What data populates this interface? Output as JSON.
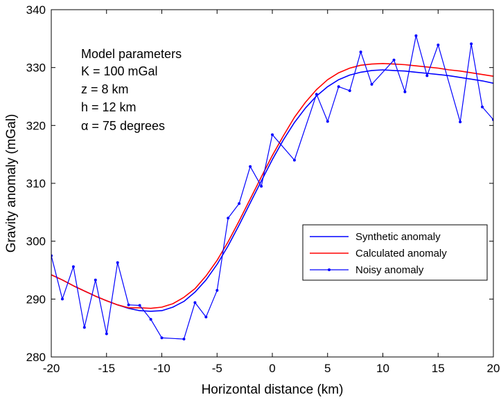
{
  "chart_data": {
    "type": "line",
    "title": "",
    "xlabel": "Horizontal distance (km)",
    "ylabel": "Gravity anomaly (mGal)",
    "xlim": [
      -20,
      20
    ],
    "ylim": [
      280,
      340
    ],
    "xticks": [
      -20,
      -15,
      -10,
      -5,
      0,
      5,
      10,
      15,
      20
    ],
    "yticks": [
      280,
      290,
      300,
      310,
      320,
      330,
      340
    ],
    "grid": false,
    "legend_position": "center-right",
    "annotations": {
      "heading": "Model parameters",
      "lines": [
        "K = 100 mGal",
        "z = 8 km",
        "h = 12 km",
        "α = 75 degrees"
      ]
    },
    "x": [
      -20,
      -19,
      -18,
      -17,
      -16,
      -15,
      -14,
      -13,
      -12,
      -11,
      -10,
      -9,
      -8,
      -7,
      -6,
      -5,
      -4,
      -3,
      -2,
      -1,
      0,
      1,
      2,
      3,
      4,
      5,
      6,
      7,
      8,
      9,
      10,
      11,
      12,
      13,
      14,
      15,
      16,
      17,
      18,
      19,
      20
    ],
    "series": [
      {
        "name": "Synthetic anomaly",
        "color": "#0000ff",
        "style": "line",
        "values": [
          294.2,
          293.3,
          292.3,
          291.4,
          290.5,
          289.7,
          289.0,
          288.4,
          288.0,
          287.9,
          288.0,
          288.6,
          289.6,
          291.2,
          293.3,
          296.0,
          299.2,
          302.8,
          306.6,
          310.4,
          314.1,
          317.5,
          320.5,
          323.0,
          325.1,
          326.7,
          327.9,
          328.7,
          329.2,
          329.5,
          329.6,
          329.5,
          329.4,
          329.2,
          329.0,
          328.8,
          328.6,
          328.3,
          328.0,
          327.7,
          327.3
        ]
      },
      {
        "name": "Calculated anomaly",
        "color": "#ff0000",
        "style": "line",
        "values": [
          294.2,
          293.3,
          292.3,
          291.4,
          290.5,
          289.7,
          289.0,
          288.5,
          288.5,
          288.4,
          288.6,
          289.2,
          290.3,
          291.8,
          294.0,
          296.7,
          299.9,
          303.5,
          307.3,
          311.1,
          314.8,
          318.2,
          321.4,
          324.0,
          326.2,
          327.9,
          329.1,
          329.9,
          330.4,
          330.6,
          330.7,
          330.6,
          330.5,
          330.3,
          330.1,
          329.9,
          329.6,
          329.4,
          329.1,
          328.8,
          328.5
        ]
      },
      {
        "name": "Noisy anomaly",
        "color": "#0000ff",
        "style": "line-marker",
        "values": [
          297.5,
          290.0,
          295.6,
          285.1,
          293.3,
          284.0,
          296.3,
          289.0,
          288.9,
          286.5,
          283.3,
          null,
          283.1,
          289.4,
          286.9,
          291.5,
          304.0,
          306.5,
          312.9,
          309.5,
          318.4,
          null,
          314.0,
          null,
          325.4,
          320.7,
          326.7,
          326.0,
          332.7,
          327.1,
          null,
          331.3,
          325.8,
          335.5,
          328.6,
          333.9,
          null,
          320.6,
          334.1,
          323.2,
          321.0
        ]
      }
    ]
  }
}
